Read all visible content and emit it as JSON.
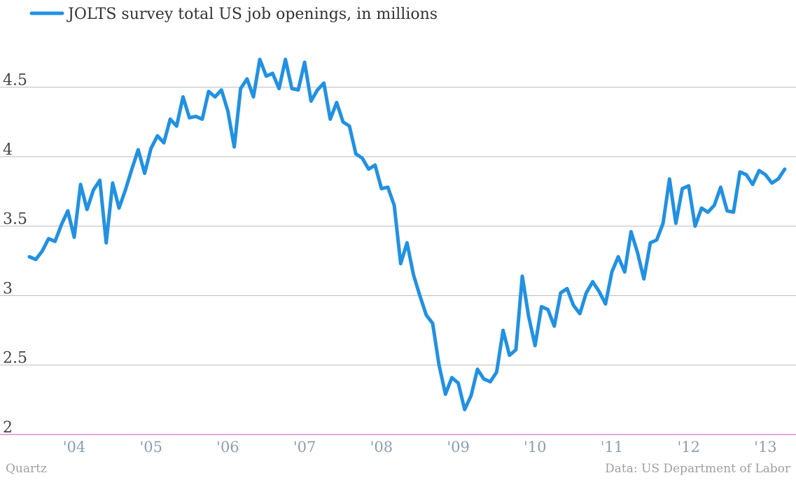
{
  "chart_data": {
    "type": "line",
    "series": [
      {
        "name": "JOLTS survey total US job openings, in millions",
        "color": "#2191e3",
        "x": [
          "2003-06",
          "2003-07",
          "2003-08",
          "2003-09",
          "2003-10",
          "2003-11",
          "2003-12",
          "2004-01",
          "2004-02",
          "2004-03",
          "2004-04",
          "2004-05",
          "2004-06",
          "2004-07",
          "2004-08",
          "2004-09",
          "2004-10",
          "2004-11",
          "2004-12",
          "2005-01",
          "2005-02",
          "2005-03",
          "2005-04",
          "2005-05",
          "2005-06",
          "2005-07",
          "2005-08",
          "2005-09",
          "2005-10",
          "2005-11",
          "2005-12",
          "2006-01",
          "2006-02",
          "2006-03",
          "2006-04",
          "2006-05",
          "2006-06",
          "2006-07",
          "2006-08",
          "2006-09",
          "2006-10",
          "2006-11",
          "2006-12",
          "2007-01",
          "2007-02",
          "2007-03",
          "2007-04",
          "2007-05",
          "2007-06",
          "2007-07",
          "2007-08",
          "2007-09",
          "2007-10",
          "2007-11",
          "2007-12",
          "2008-01",
          "2008-02",
          "2008-03",
          "2008-04",
          "2008-05",
          "2008-06",
          "2008-07",
          "2008-08",
          "2008-09",
          "2008-10",
          "2008-11",
          "2008-12",
          "2009-01",
          "2009-02",
          "2009-03",
          "2009-04",
          "2009-05",
          "2009-06",
          "2009-07",
          "2009-08",
          "2009-09",
          "2009-10",
          "2009-11",
          "2009-12",
          "2010-01",
          "2010-02",
          "2010-03",
          "2010-04",
          "2010-05",
          "2010-06",
          "2010-07",
          "2010-08",
          "2010-09",
          "2010-10",
          "2010-11",
          "2010-12",
          "2011-01",
          "2011-02",
          "2011-03",
          "2011-04",
          "2011-05",
          "2011-06",
          "2011-07",
          "2011-08",
          "2011-09",
          "2011-10",
          "2011-11",
          "2011-12",
          "2012-01",
          "2012-02",
          "2012-03",
          "2012-04",
          "2012-05",
          "2012-06",
          "2012-07",
          "2012-08",
          "2012-09",
          "2012-10",
          "2012-11",
          "2012-12",
          "2013-01",
          "2013-02",
          "2013-03",
          "2013-04"
        ],
        "values": [
          3.28,
          3.26,
          3.32,
          3.41,
          3.39,
          3.51,
          3.61,
          3.42,
          3.8,
          3.62,
          3.76,
          3.83,
          3.38,
          3.81,
          3.63,
          3.76,
          3.91,
          4.05,
          3.88,
          4.06,
          4.15,
          4.1,
          4.27,
          4.22,
          4.43,
          4.28,
          4.29,
          4.27,
          4.47,
          4.43,
          4.48,
          4.33,
          4.07,
          4.49,
          4.56,
          4.43,
          4.7,
          4.58,
          4.6,
          4.49,
          4.7,
          4.49,
          4.48,
          4.68,
          4.4,
          4.48,
          4.53,
          4.27,
          4.39,
          4.25,
          4.22,
          4.02,
          3.99,
          3.91,
          3.94,
          3.77,
          3.78,
          3.65,
          3.23,
          3.38,
          3.15,
          3.0,
          2.86,
          2.8,
          2.5,
          2.29,
          2.41,
          2.37,
          2.18,
          2.28,
          2.47,
          2.4,
          2.38,
          2.45,
          2.75,
          2.57,
          2.61,
          3.14,
          2.85,
          2.64,
          2.92,
          2.9,
          2.78,
          3.02,
          3.05,
          2.93,
          2.87,
          3.02,
          3.1,
          3.03,
          2.94,
          3.17,
          3.28,
          3.17,
          3.46,
          3.31,
          3.12,
          3.38,
          3.4,
          3.52,
          3.84,
          3.52,
          3.77,
          3.79,
          3.5,
          3.63,
          3.6,
          3.65,
          3.78,
          3.61,
          3.6,
          3.89,
          3.87,
          3.8,
          3.9,
          3.87,
          3.81,
          3.84,
          3.91
        ]
      }
    ],
    "y_ticks": [
      2,
      2.5,
      3,
      3.5,
      4,
      4.5
    ],
    "y_tick_labels": [
      "2",
      "2.5",
      "3",
      "3.5",
      "4",
      "4.5"
    ],
    "ylim": [
      2,
      4.75
    ],
    "x_ticks": [
      "2004-01",
      "2005-01",
      "2006-01",
      "2007-01",
      "2008-01",
      "2009-01",
      "2010-01",
      "2011-01",
      "2012-01",
      "2013-01"
    ],
    "x_tick_labels": [
      "'04",
      "'05",
      "'06",
      "'07",
      "'08",
      "'09",
      "'10",
      "'11",
      "'12",
      "'13"
    ],
    "grid": true,
    "legend": "top-left",
    "baseline_color": "#d94fc6",
    "grid_color": "#bdbdbd"
  },
  "footer": {
    "source_left": "Quartz",
    "source_right": "Data: US Department of Labor"
  }
}
